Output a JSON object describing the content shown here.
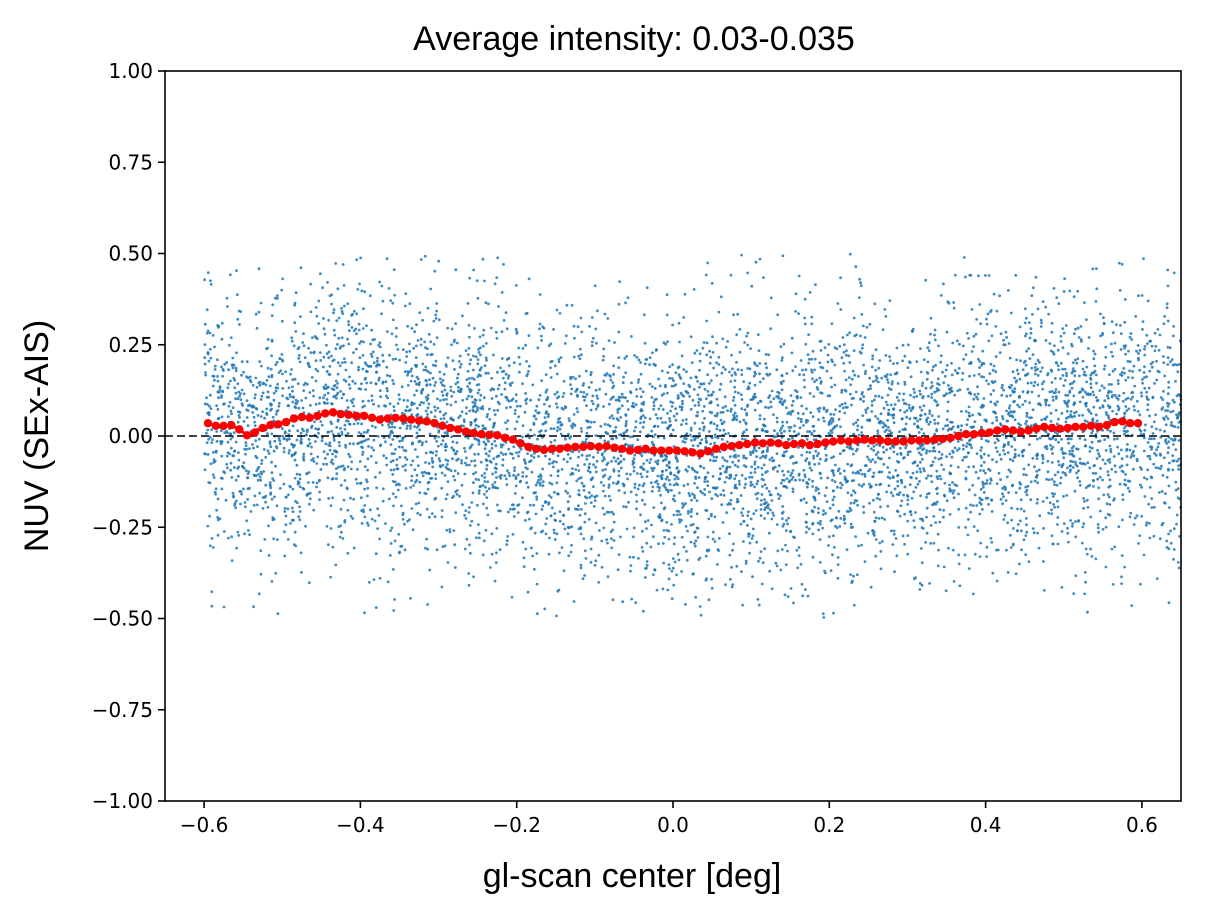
{
  "chart_data": {
    "type": "scatter",
    "title": "Average intensity: 0.03-0.035",
    "xlabel": "gl-scan center [deg]",
    "ylabel": "NUV (SEx-AIS)",
    "xlim": [
      -0.65,
      0.65
    ],
    "ylim": [
      -1.0,
      1.0
    ],
    "xticks": [
      -0.6,
      -0.4,
      -0.2,
      0.0,
      0.2,
      0.4,
      0.6
    ],
    "xtick_labels": [
      "−0.6",
      "−0.4",
      "−0.2",
      "0.0",
      "0.2",
      "0.4",
      "0.6"
    ],
    "yticks": [
      -1.0,
      -0.75,
      -0.5,
      -0.25,
      0.0,
      0.25,
      0.5,
      0.75,
      1.0
    ],
    "ytick_labels": [
      "−1.00",
      "−0.75",
      "−0.50",
      "−0.25",
      "0.00",
      "0.25",
      "0.50",
      "0.75",
      "1.00"
    ],
    "grid": false,
    "reference_line": {
      "y": 0.0,
      "style": "dashed",
      "color": "#000000"
    },
    "colors": {
      "scatter": "#1f77b4",
      "running_mean": "#ff0000"
    },
    "scatter_series": {
      "description_of_distribution": "about 6000 points, x uniform in [-0.6, 0.65], y roughly normal around 0 with std ~0.18, clipped to [-0.5, 0.5]",
      "x_range": [
        -0.6,
        0.65
      ],
      "y_range": [
        -0.5,
        0.5
      ],
      "point_count": 6000
    },
    "running_mean": {
      "x": [
        -0.595,
        -0.585,
        -0.575,
        -0.565,
        -0.555,
        -0.545,
        -0.535,
        -0.525,
        -0.515,
        -0.505,
        -0.495,
        -0.485,
        -0.475,
        -0.465,
        -0.455,
        -0.445,
        -0.435,
        -0.425,
        -0.415,
        -0.405,
        -0.395,
        -0.385,
        -0.375,
        -0.365,
        -0.355,
        -0.345,
        -0.335,
        -0.325,
        -0.315,
        -0.305,
        -0.295,
        -0.285,
        -0.275,
        -0.265,
        -0.255,
        -0.245,
        -0.235,
        -0.225,
        -0.215,
        -0.205,
        -0.195,
        -0.185,
        -0.175,
        -0.165,
        -0.155,
        -0.145,
        -0.135,
        -0.125,
        -0.115,
        -0.105,
        -0.095,
        -0.085,
        -0.075,
        -0.065,
        -0.055,
        -0.045,
        -0.035,
        -0.025,
        -0.015,
        -0.005,
        0.005,
        0.015,
        0.025,
        0.035,
        0.045,
        0.055,
        0.065,
        0.075,
        0.085,
        0.095,
        0.105,
        0.115,
        0.125,
        0.135,
        0.145,
        0.155,
        0.165,
        0.175,
        0.185,
        0.195,
        0.205,
        0.215,
        0.225,
        0.235,
        0.245,
        0.255,
        0.265,
        0.275,
        0.285,
        0.295,
        0.305,
        0.315,
        0.325,
        0.335,
        0.345,
        0.355,
        0.365,
        0.375,
        0.385,
        0.395,
        0.405,
        0.415,
        0.425,
        0.435,
        0.445,
        0.455,
        0.465,
        0.475,
        0.485,
        0.495,
        0.505,
        0.515,
        0.525,
        0.535,
        0.545,
        0.555,
        0.565,
        0.575,
        0.585,
        0.595
      ],
      "y": [
        0.035,
        0.028,
        0.028,
        0.03,
        0.018,
        0.002,
        0.01,
        0.022,
        0.03,
        0.032,
        0.038,
        0.048,
        0.052,
        0.05,
        0.055,
        0.062,
        0.065,
        0.06,
        0.058,
        0.055,
        0.055,
        0.05,
        0.045,
        0.048,
        0.05,
        0.048,
        0.045,
        0.042,
        0.04,
        0.035,
        0.028,
        0.022,
        0.018,
        0.012,
        0.008,
        0.005,
        0.003,
        0.002,
        -0.005,
        -0.01,
        -0.02,
        -0.03,
        -0.035,
        -0.038,
        -0.035,
        -0.035,
        -0.032,
        -0.03,
        -0.03,
        -0.028,
        -0.03,
        -0.028,
        -0.032,
        -0.035,
        -0.04,
        -0.038,
        -0.035,
        -0.04,
        -0.04,
        -0.04,
        -0.04,
        -0.042,
        -0.045,
        -0.048,
        -0.042,
        -0.035,
        -0.03,
        -0.028,
        -0.025,
        -0.022,
        -0.018,
        -0.02,
        -0.018,
        -0.02,
        -0.025,
        -0.022,
        -0.02,
        -0.025,
        -0.022,
        -0.018,
        -0.015,
        -0.012,
        -0.015,
        -0.012,
        -0.01,
        -0.012,
        -0.012,
        -0.015,
        -0.015,
        -0.015,
        -0.012,
        -0.012,
        -0.012,
        -0.01,
        -0.008,
        -0.005,
        0.0,
        0.005,
        0.005,
        0.008,
        0.01,
        0.015,
        0.018,
        0.015,
        0.012,
        0.015,
        0.02,
        0.025,
        0.022,
        0.02,
        0.022,
        0.025,
        0.025,
        0.028,
        0.025,
        0.03,
        0.038,
        0.04,
        0.035,
        0.035
      ]
    }
  }
}
